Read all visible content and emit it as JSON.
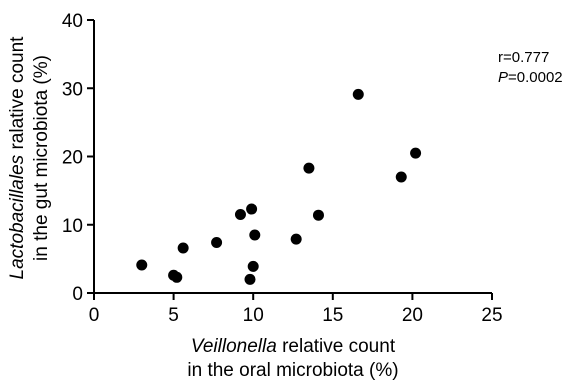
{
  "chart_data": {
    "type": "scatter",
    "title": "",
    "xlabel": {
      "italic": "Veillonella",
      "rest": " relative count",
      "line2": "in the oral microbiota (%)"
    },
    "ylabel": {
      "italic": "Lactobacillales",
      "rest": " ralative count",
      "line2": "in the gut microbiota (%)"
    },
    "xlim": [
      0,
      25
    ],
    "ylim": [
      0,
      40
    ],
    "xticks": [
      "0",
      "5",
      "10",
      "15",
      "20",
      "25"
    ],
    "yticks": [
      "0",
      "10",
      "20",
      "30",
      "40"
    ],
    "grid": false,
    "marker_color": "#000000",
    "annotation": {
      "r_text": "r=0.777",
      "p_label": "P",
      "p_value": "=0.0002"
    },
    "points": [
      {
        "x": 3.0,
        "y": 4.1
      },
      {
        "x": 5.0,
        "y": 2.6
      },
      {
        "x": 5.2,
        "y": 2.3
      },
      {
        "x": 5.6,
        "y": 6.6
      },
      {
        "x": 7.7,
        "y": 7.4
      },
      {
        "x": 9.2,
        "y": 11.5
      },
      {
        "x": 9.8,
        "y": 2.0
      },
      {
        "x": 9.9,
        "y": 12.3
      },
      {
        "x": 10.0,
        "y": 3.9
      },
      {
        "x": 10.1,
        "y": 8.5
      },
      {
        "x": 12.7,
        "y": 7.9
      },
      {
        "x": 13.5,
        "y": 18.3
      },
      {
        "x": 14.1,
        "y": 11.4
      },
      {
        "x": 16.6,
        "y": 29.1
      },
      {
        "x": 19.3,
        "y": 17.0
      },
      {
        "x": 20.2,
        "y": 20.5
      }
    ]
  }
}
